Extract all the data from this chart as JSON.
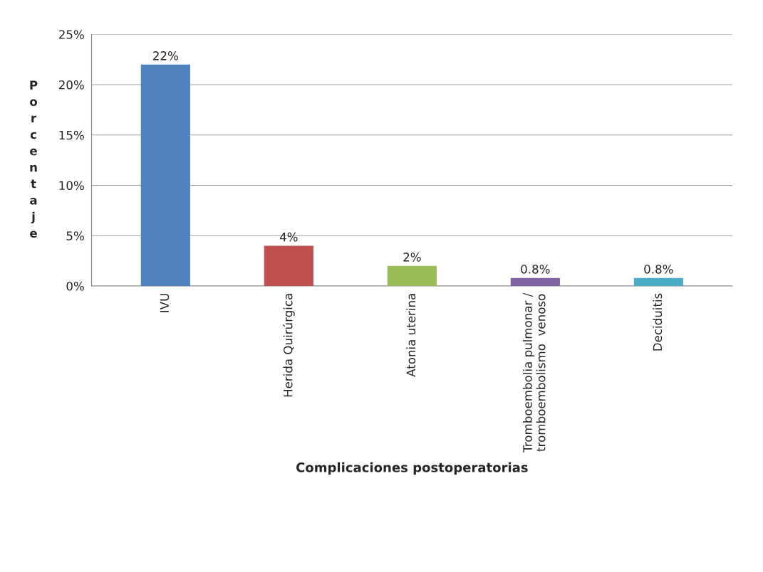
{
  "chart_data": {
    "type": "bar",
    "categories": [
      "IVU",
      "Herida Quirúrgica",
      "Atonia uterina",
      "Tromboembolia pulmonar /\ntromboembolismo  venoso",
      "Deciduitis"
    ],
    "values": [
      22,
      4,
      2,
      0.8,
      0.8
    ],
    "colors": [
      "#4f81bd",
      "#c0504d",
      "#9bbb59",
      "#8064a2",
      "#4bacc6"
    ],
    "value_labels": [
      "22%",
      "4%",
      "2%",
      "0.8%",
      "0.8%"
    ],
    "xlabel": "Complicaciones postoperatorias",
    "ylabel": "Porcentaje",
    "ylim": [
      0,
      25
    ],
    "yticks": [
      {
        "value": 0,
        "label": "0%"
      },
      {
        "value": 5,
        "label": "5%"
      },
      {
        "value": 10,
        "label": "10%"
      },
      {
        "value": 15,
        "label": "15%"
      },
      {
        "value": 20,
        "label": "20%"
      },
      {
        "value": 25,
        "label": "25%"
      }
    ],
    "grid": "y"
  }
}
